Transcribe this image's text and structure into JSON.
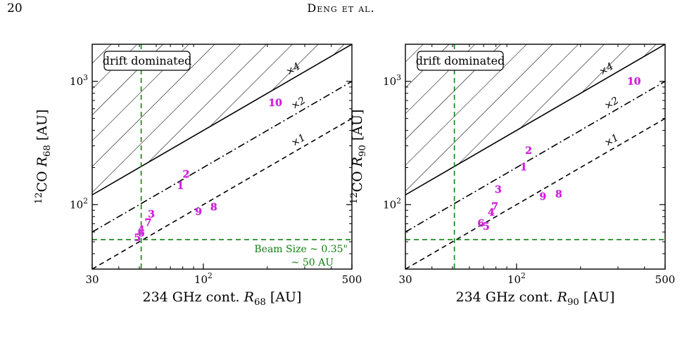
{
  "header": {
    "page_number": "20",
    "running_head": "Deng et al."
  },
  "colors": {
    "points": "#e014e0",
    "guide": "#128012",
    "lines": "#000000"
  },
  "chart_data": [
    {
      "type": "scatter",
      "xlabel": "234 GHz cont.  R_68  [AU]",
      "ylabel": "12CO R_68 [AU]",
      "x_scale": "log",
      "y_scale": "log",
      "xlim": [
        30,
        500
      ],
      "ylim": [
        30,
        2000
      ],
      "x_ticks": [
        {
          "v": 30,
          "label": "30"
        },
        {
          "v": 100,
          "label": "10^2"
        },
        {
          "v": 500,
          "label": "500"
        }
      ],
      "y_ticks": [
        {
          "v": 100,
          "label": "10^2"
        },
        {
          "v": 1000,
          "label": "10^3"
        }
      ],
      "ratio_lines": [
        {
          "factor": 1,
          "label": "×1",
          "style": "dashed"
        },
        {
          "factor": 2,
          "label": "×2",
          "style": "dashdot"
        },
        {
          "factor": 4,
          "label": "×4",
          "style": "solid"
        }
      ],
      "hatched_region_label": "drift dominated",
      "vline_x": 51,
      "hline_y": 52,
      "beam_label_1": "Beam Size ~ 0.35\"",
      "beam_label_2": "~ 50 AU",
      "points": [
        {
          "label": "1",
          "x": 78,
          "y": 143
        },
        {
          "label": "2",
          "x": 83,
          "y": 178
        },
        {
          "label": "3",
          "x": 57,
          "y": 84
        },
        {
          "label": "4",
          "x": 51,
          "y": 63
        },
        {
          "label": "5",
          "x": 49,
          "y": 54
        },
        {
          "label": "6",
          "x": 51,
          "y": 59
        },
        {
          "label": "7",
          "x": 55,
          "y": 72
        },
        {
          "label": "8",
          "x": 112,
          "y": 96
        },
        {
          "label": "9",
          "x": 95,
          "y": 88
        },
        {
          "label": "10",
          "x": 218,
          "y": 675
        }
      ]
    },
    {
      "type": "scatter",
      "xlabel": "234 GHz cont.  R_90  [AU]",
      "ylabel": "12CO R_90 [AU]",
      "x_scale": "log",
      "y_scale": "log",
      "xlim": [
        30,
        500
      ],
      "ylim": [
        30,
        2000
      ],
      "x_ticks": [
        {
          "v": 30,
          "label": "30"
        },
        {
          "v": 100,
          "label": "10^2"
        },
        {
          "v": 500,
          "label": "500"
        }
      ],
      "y_ticks": [
        {
          "v": 100,
          "label": "10^2"
        },
        {
          "v": 1000,
          "label": "10^3"
        }
      ],
      "ratio_lines": [
        {
          "factor": 1,
          "label": "×1",
          "style": "dashed"
        },
        {
          "factor": 2,
          "label": "×2",
          "style": "dashdot"
        },
        {
          "factor": 4,
          "label": "×4",
          "style": "solid"
        }
      ],
      "hatched_region_label": "drift dominated",
      "vline_x": 51,
      "hline_y": 52,
      "points": [
        {
          "label": "1",
          "x": 108,
          "y": 203
        },
        {
          "label": "2",
          "x": 114,
          "y": 276
        },
        {
          "label": "3",
          "x": 82,
          "y": 133
        },
        {
          "label": "4",
          "x": 76,
          "y": 87
        },
        {
          "label": "5",
          "x": 72,
          "y": 67
        },
        {
          "label": "6",
          "x": 68,
          "y": 71
        },
        {
          "label": "7",
          "x": 79,
          "y": 97
        },
        {
          "label": "8",
          "x": 158,
          "y": 122
        },
        {
          "label": "9",
          "x": 133,
          "y": 117
        },
        {
          "label": "10",
          "x": 357,
          "y": 1005
        }
      ]
    }
  ]
}
